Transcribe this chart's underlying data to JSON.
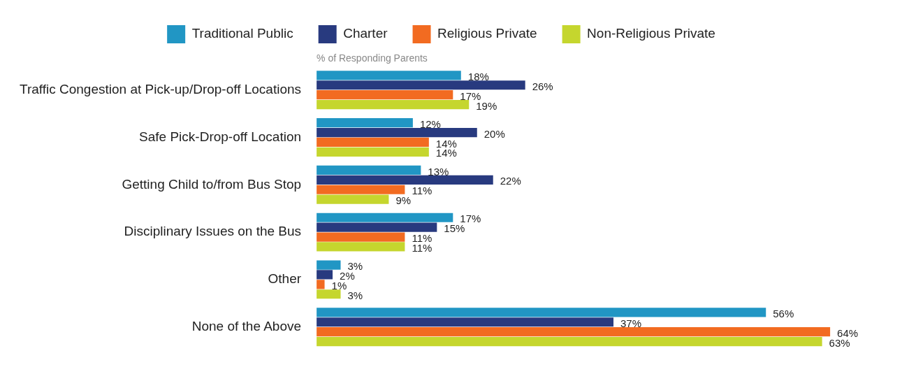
{
  "chart_data": {
    "type": "bar",
    "orientation": "horizontal",
    "xlabel": "% of Responding Parents",
    "categories": [
      "Traffic Congestion at Pick-up/Drop-off Locations",
      "Safe Pick-Drop-off Location",
      "Getting Child to/from Bus Stop",
      "Disciplinary Issues on the Bus",
      "Other",
      "None of the Above"
    ],
    "series": [
      {
        "name": "Traditional Public",
        "color": "#2196c4",
        "values": [
          18,
          12,
          13,
          17,
          3,
          56
        ],
        "value_labels": [
          "18%",
          "12%",
          "13%",
          "17%",
          "3%",
          "56%"
        ]
      },
      {
        "name": "Charter",
        "color": "#283a7f",
        "values": [
          26,
          20,
          22,
          15,
          2,
          37
        ],
        "value_labels": [
          "26%",
          "20%",
          "22%",
          "15%",
          "2%",
          "37%"
        ]
      },
      {
        "name": "Religious Private",
        "color": "#f26b21",
        "values": [
          17,
          14,
          11,
          11,
          1,
          64
        ],
        "value_labels": [
          "17%",
          "14%",
          "11%",
          "11%",
          "1%",
          "64%"
        ]
      },
      {
        "name": "Non-Religious Private",
        "color": "#c5d62e",
        "values": [
          19,
          14,
          9,
          11,
          3,
          63
        ],
        "value_labels": [
          "19%",
          "14%",
          "9%",
          "11%",
          "3%",
          "63%"
        ]
      }
    ],
    "grid": false,
    "legend": "top",
    "tick_labels": "y"
  }
}
